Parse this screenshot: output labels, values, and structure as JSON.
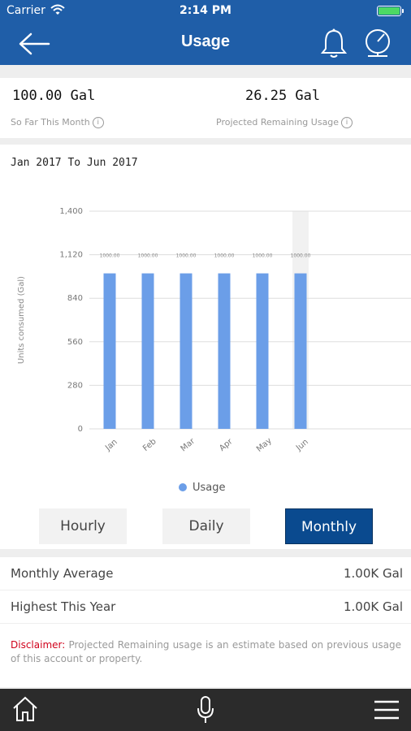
{
  "status_bar": {
    "carrier": "Carrier",
    "time": "2:14 PM"
  },
  "header": {
    "title": "Usage",
    "icons": [
      "back-arrow-icon",
      "bell-icon",
      "meter-icon"
    ]
  },
  "summary": {
    "so_far_value": "100.00 Gal",
    "so_far_label": "So Far This Month",
    "projected_value": "26.25 Gal",
    "projected_label": "Projected Remaining Usage",
    "info_glyph": "i"
  },
  "chart": {
    "range_label": "Jan 2017 To Jun 2017",
    "legend_label": "Usage"
  },
  "chart_data": {
    "type": "bar",
    "categories": [
      "Jan",
      "Feb",
      "Mar",
      "Apr",
      "May",
      "Jun"
    ],
    "values": [
      1000,
      1000,
      1000,
      1000,
      1000,
      1000
    ],
    "data_labels": [
      "1000.00",
      "1000.00",
      "1000.00",
      "1000.00",
      "1000.00",
      "1000.00"
    ],
    "series": [
      {
        "name": "Usage",
        "values": [
          1000,
          1000,
          1000,
          1000,
          1000,
          1000
        ]
      }
    ],
    "ylabel": "Units consumed (Gal)",
    "ylim": [
      0,
      1400
    ],
    "yticks": [
      0,
      280,
      560,
      840,
      1120,
      1400
    ],
    "ytick_labels": [
      "0",
      "280",
      "560",
      "840",
      "1,120",
      "1,400"
    ],
    "highlighted_category": "Jun",
    "bar_color": "#6b9ee8",
    "grid": true,
    "legend_position": "bottom"
  },
  "segments": {
    "hourly": "Hourly",
    "daily": "Daily",
    "monthly": "Monthly",
    "selected": "monthly"
  },
  "rows": {
    "monthly_average_label": "Monthly Average",
    "monthly_average_value": "1.00K Gal",
    "highest_label": "Highest This Year",
    "highest_value": "1.00K Gal"
  },
  "disclaimer": {
    "label": "Disclaimer:",
    "text": "Projected Remaining usage is an estimate based on previous usage of this account or property."
  },
  "tab_bar": {
    "icons": [
      "home-icon",
      "microphone-icon",
      "menu-icon"
    ]
  },
  "colors": {
    "primary": "#1f5ea8",
    "active_segment": "#0a4a8f",
    "bar": "#6b9ee8",
    "disclaimer_label": "#d0021b"
  }
}
